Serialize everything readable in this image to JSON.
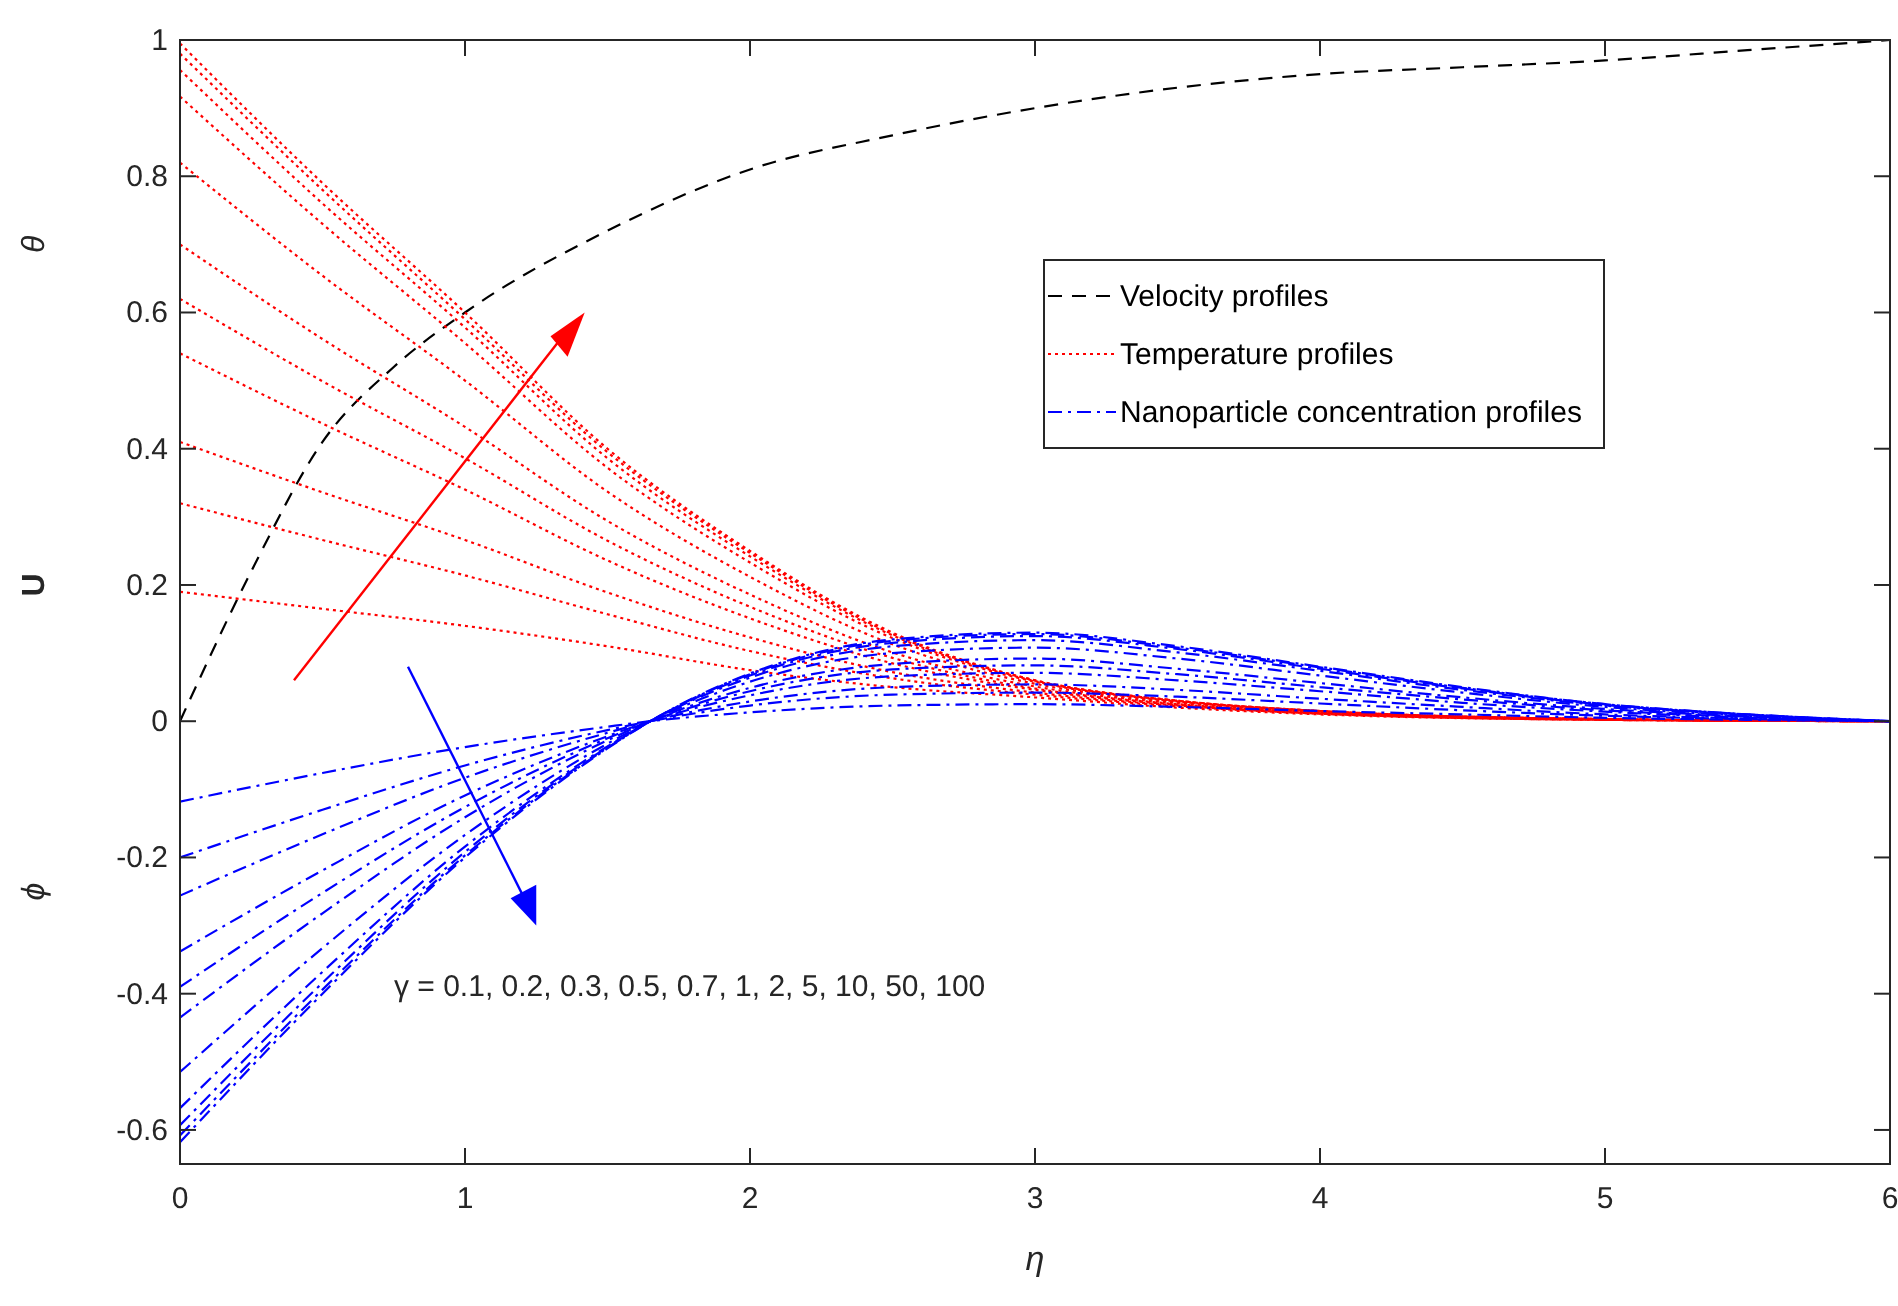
{
  "chart_data": {
    "type": "line",
    "xlabel": "η",
    "ylabel": "U",
    "annotations": [
      "γ = 0.1, 0.2, 0.3, 0.5, 0.7, 1, 2, 5, 10, 50, 100",
      "θ",
      "ϕ"
    ],
    "xlim": [
      0,
      6
    ],
    "ylim": [
      -0.65,
      1
    ],
    "xticks": [
      0,
      1,
      2,
      3,
      4,
      5,
      6
    ],
    "yticks": [
      -0.6,
      -0.4,
      -0.2,
      0,
      0.2,
      0.4,
      0.6,
      0.8,
      1
    ],
    "grid": false,
    "legend": "top right",
    "marker": "none",
    "series": [
      {
        "name": "Velocity profiles",
        "color": "#000000",
        "line_style": "dashed",
        "x": [
          0,
          0.25,
          0.5,
          0.75,
          1,
          1.5,
          2,
          2.5,
          3,
          3.5,
          4,
          4.5,
          5,
          5.5,
          6
        ],
        "values": [
          0,
          0.22,
          0.41,
          0.52,
          0.6,
          0.72,
          0.81,
          0.86,
          0.9,
          0.93,
          0.95,
          0.96,
          0.97,
          0.985,
          1
        ]
      },
      {
        "name": "Temperature profiles",
        "color": "#ff0000",
        "line_style": "dotted",
        "x": [
          0,
          0.5,
          1,
          1.5,
          2,
          2.5,
          3,
          3.5,
          4,
          5,
          6
        ],
        "values": [
          0.995,
          0.79,
          0.6,
          0.4,
          0.25,
          0.13,
          0.06,
          0.03,
          0.015,
          0.003,
          0
        ]
      },
      {
        "color": "#ff0000",
        "line_style": "dotted",
        "x": [
          0,
          0.5,
          1,
          1.5,
          2,
          2.5,
          3,
          3.5,
          4,
          5,
          6
        ],
        "values": [
          0.98,
          0.78,
          0.59,
          0.395,
          0.247,
          0.128,
          0.06,
          0.03,
          0.015,
          0.003,
          0
        ]
      },
      {
        "color": "#ff0000",
        "line_style": "dotted",
        "x": [
          0,
          0.5,
          1,
          1.5,
          2,
          2.5,
          3,
          3.5,
          4,
          5,
          6
        ],
        "values": [
          0.956,
          0.76,
          0.578,
          0.386,
          0.242,
          0.126,
          0.059,
          0.03,
          0.015,
          0.003,
          0
        ]
      },
      {
        "color": "#ff0000",
        "line_style": "dotted",
        "x": [
          0,
          0.5,
          1,
          1.5,
          2,
          2.5,
          3,
          3.5,
          4,
          5,
          6
        ],
        "values": [
          0.917,
          0.73,
          0.555,
          0.372,
          0.233,
          0.122,
          0.058,
          0.029,
          0.015,
          0.003,
          0
        ]
      },
      {
        "color": "#ff0000",
        "line_style": "dotted",
        "x": [
          0,
          0.5,
          1,
          1.5,
          2,
          2.5,
          3,
          3.5,
          4,
          5,
          6
        ],
        "values": [
          0.82,
          0.654,
          0.5,
          0.337,
          0.212,
          0.113,
          0.055,
          0.028,
          0.014,
          0.003,
          0
        ]
      },
      {
        "color": "#ff0000",
        "line_style": "dotted",
        "x": [
          0,
          0.5,
          1,
          1.5,
          2,
          2.5,
          3,
          3.5,
          4,
          5,
          6
        ],
        "values": [
          0.7,
          0.561,
          0.432,
          0.294,
          0.186,
          0.101,
          0.051,
          0.026,
          0.013,
          0.003,
          0
        ]
      },
      {
        "color": "#ff0000",
        "line_style": "dotted",
        "x": [
          0,
          0.5,
          1,
          1.5,
          2,
          2.5,
          3,
          3.5,
          4,
          5,
          6
        ],
        "values": [
          0.62,
          0.499,
          0.386,
          0.265,
          0.168,
          0.093,
          0.048,
          0.025,
          0.013,
          0.003,
          0
        ]
      },
      {
        "color": "#ff0000",
        "line_style": "dotted",
        "x": [
          0,
          0.5,
          1,
          1.5,
          2,
          2.5,
          3,
          3.5,
          4,
          5,
          6
        ],
        "values": [
          0.54,
          0.437,
          0.34,
          0.236,
          0.151,
          0.085,
          0.046,
          0.024,
          0.012,
          0.002,
          0
        ]
      },
      {
        "color": "#ff0000",
        "line_style": "dotted",
        "x": [
          0,
          0.5,
          1,
          1.5,
          2,
          2.5,
          3,
          3.5,
          4,
          5,
          6
        ],
        "values": [
          0.41,
          0.336,
          0.266,
          0.189,
          0.123,
          0.072,
          0.042,
          0.023,
          0.011,
          0.002,
          0
        ]
      },
      {
        "color": "#ff0000",
        "line_style": "dotted",
        "x": [
          0,
          0.5,
          1,
          1.5,
          2,
          2.5,
          3,
          3.5,
          4,
          5,
          6
        ],
        "values": [
          0.32,
          0.266,
          0.214,
          0.157,
          0.103,
          0.063,
          0.039,
          0.022,
          0.011,
          0.002,
          0
        ]
      },
      {
        "color": "#ff0000",
        "line_style": "dotted",
        "x": [
          0,
          0.5,
          1,
          1.5,
          2,
          2.5,
          3,
          3.5,
          4,
          5,
          6
        ],
        "values": [
          0.19,
          0.165,
          0.14,
          0.11,
          0.075,
          0.05,
          0.035,
          0.02,
          0.01,
          0.002,
          0
        ]
      },
      {
        "name": "Nanoparticle concentration profiles",
        "color": "#0000ff",
        "line_style": "dashdot",
        "x": [
          0,
          0.5,
          1,
          1.5,
          1.65,
          2,
          2.5,
          3,
          3.5,
          4,
          4.5,
          5,
          5.5,
          6
        ],
        "values": [
          -0.118,
          -0.076,
          -0.038,
          -0.008,
          0,
          0.013,
          0.023,
          0.025,
          0.021,
          0.015,
          0.01,
          0.005,
          0.002,
          0
        ]
      },
      {
        "color": "#0000ff",
        "line_style": "dashdot",
        "x": [
          0,
          0.5,
          1,
          1.5,
          1.65,
          2,
          2.5,
          3,
          3.5,
          4,
          4.5,
          5,
          5.5,
          6
        ],
        "values": [
          -0.2,
          -0.13,
          -0.065,
          -0.013,
          0,
          0.023,
          0.039,
          0.042,
          0.036,
          0.026,
          0.016,
          0.008,
          0.003,
          0
        ]
      },
      {
        "color": "#0000ff",
        "line_style": "dashdot",
        "x": [
          0,
          0.5,
          1,
          1.5,
          1.65,
          2,
          2.5,
          3,
          3.5,
          4,
          4.5,
          5,
          5.5,
          6
        ],
        "values": [
          -0.256,
          -0.166,
          -0.083,
          -0.017,
          0,
          0.029,
          0.05,
          0.054,
          0.046,
          0.033,
          0.021,
          0.01,
          0.004,
          0
        ]
      },
      {
        "color": "#0000ff",
        "line_style": "dashdot",
        "x": [
          0,
          0.5,
          1,
          1.5,
          1.65,
          2,
          2.5,
          3,
          3.5,
          4,
          4.5,
          5,
          5.5,
          6
        ],
        "values": [
          -0.338,
          -0.219,
          -0.109,
          -0.022,
          0,
          0.038,
          0.066,
          0.071,
          0.06,
          0.044,
          0.027,
          0.014,
          0.005,
          0
        ]
      },
      {
        "color": "#0000ff",
        "line_style": "dashdot",
        "x": [
          0,
          0.5,
          1,
          1.5,
          1.65,
          2,
          2.5,
          3,
          3.5,
          4,
          4.5,
          5,
          5.5,
          6
        ],
        "values": [
          -0.39,
          -0.252,
          -0.126,
          -0.025,
          0,
          0.044,
          0.076,
          0.082,
          0.069,
          0.05,
          0.032,
          0.016,
          0.006,
          0
        ]
      },
      {
        "color": "#0000ff",
        "line_style": "dashdot",
        "x": [
          0,
          0.5,
          1,
          1.5,
          1.65,
          2,
          2.5,
          3,
          3.5,
          4,
          4.5,
          5,
          5.5,
          6
        ],
        "values": [
          -0.435,
          -0.282,
          -0.141,
          -0.028,
          0,
          0.049,
          0.084,
          0.092,
          0.077,
          0.056,
          0.035,
          0.018,
          0.007,
          0
        ]
      },
      {
        "color": "#0000ff",
        "line_style": "dashdot",
        "x": [
          0,
          0.5,
          1,
          1.5,
          1.65,
          2,
          2.5,
          3,
          3.5,
          4,
          4.5,
          5,
          5.5,
          6
        ],
        "values": [
          -0.515,
          -0.333,
          -0.167,
          -0.033,
          0,
          0.058,
          0.1,
          0.108,
          0.092,
          0.067,
          0.042,
          0.021,
          0.008,
          0
        ]
      },
      {
        "color": "#0000ff",
        "line_style": "dashdot",
        "x": [
          0,
          0.5,
          1,
          1.5,
          1.65,
          2,
          2.5,
          3,
          3.5,
          4,
          4.5,
          5,
          5.5,
          6
        ],
        "values": [
          -0.568,
          -0.368,
          -0.184,
          -0.037,
          0,
          0.064,
          0.11,
          0.119,
          0.101,
          0.074,
          0.046,
          0.023,
          0.009,
          0
        ]
      },
      {
        "color": "#0000ff",
        "line_style": "dashdot",
        "x": [
          0,
          0.5,
          1,
          1.5,
          1.65,
          2,
          2.5,
          3,
          3.5,
          4,
          4.5,
          5,
          5.5,
          6
        ],
        "values": [
          -0.593,
          -0.384,
          -0.192,
          -0.038,
          0,
          0.067,
          0.115,
          0.125,
          0.106,
          0.077,
          0.048,
          0.024,
          0.01,
          0
        ]
      },
      {
        "color": "#0000ff",
        "line_style": "dashdot",
        "x": [
          0,
          0.5,
          1,
          1.5,
          1.65,
          2,
          2.5,
          3,
          3.5,
          4,
          4.5,
          5,
          5.5,
          6
        ],
        "values": [
          -0.608,
          -0.394,
          -0.197,
          -0.039,
          0,
          0.069,
          0.118,
          0.128,
          0.108,
          0.079,
          0.049,
          0.025,
          0.01,
          0
        ]
      },
      {
        "color": "#0000ff",
        "line_style": "dashdot",
        "x": [
          0,
          0.5,
          1,
          1.5,
          1.65,
          2,
          2.5,
          3,
          3.5,
          4,
          4.5,
          5,
          5.5,
          6
        ],
        "values": [
          -0.618,
          -0.4,
          -0.2,
          -0.04,
          0,
          0.07,
          0.12,
          0.13,
          0.11,
          0.08,
          0.05,
          0.025,
          0.01,
          0
        ]
      }
    ]
  }
}
